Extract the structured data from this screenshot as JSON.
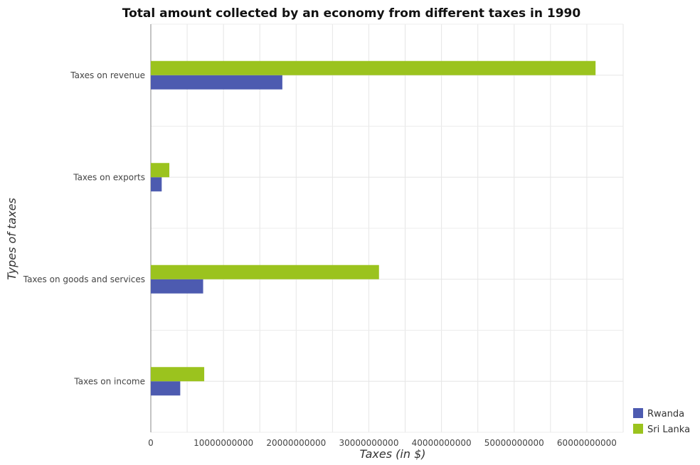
{
  "chart_data": {
    "type": "bar",
    "orientation": "horizontal",
    "title": "Total amount collected by an economy from different taxes in 1990",
    "xlabel": "Taxes (in $)",
    "ylabel": "Types of taxes",
    "categories": [
      "Taxes on revenue",
      "Taxes on exports",
      "Taxes on goods and services",
      "Taxes on income"
    ],
    "series": [
      {
        "name": "Rwanda",
        "color": "#4d5bb0",
        "values": [
          18100000000,
          1500000000,
          7200000000,
          4050000000
        ]
      },
      {
        "name": "Sri Lanka",
        "color": "#9bc31e",
        "values": [
          61200000000,
          2550000000,
          31400000000,
          7350000000
        ]
      }
    ],
    "xlim": [
      0,
      65000000000
    ],
    "xticks": [
      0,
      10000000000,
      20000000000,
      30000000000,
      40000000000,
      50000000000,
      60000000000
    ],
    "xtick_labels": [
      "0",
      "10000000000",
      "20000000000",
      "30000000000",
      "40000000000",
      "50000000000",
      "60000000000"
    ],
    "grid": true,
    "legend_position": "bottom-right"
  }
}
